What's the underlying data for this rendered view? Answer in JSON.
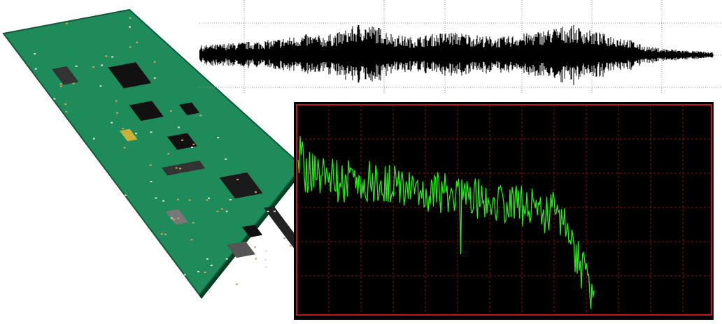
{
  "colors": {
    "board": "#1f8a5a",
    "board_edge": "#0f5c3a",
    "waveform": "#000000",
    "waveform_grid": "#9a9a9a",
    "spectrum_background": "#000000",
    "spectrum_frame": "#c01818",
    "spectrum_grid": "#7a1a1a",
    "spectrum_trace": "#22ee11"
  },
  "panels": {
    "board_photo": "circuit-board-image",
    "waveform": "audio-waveform-plot",
    "spectrum": "frequency-spectrum-plot"
  }
}
